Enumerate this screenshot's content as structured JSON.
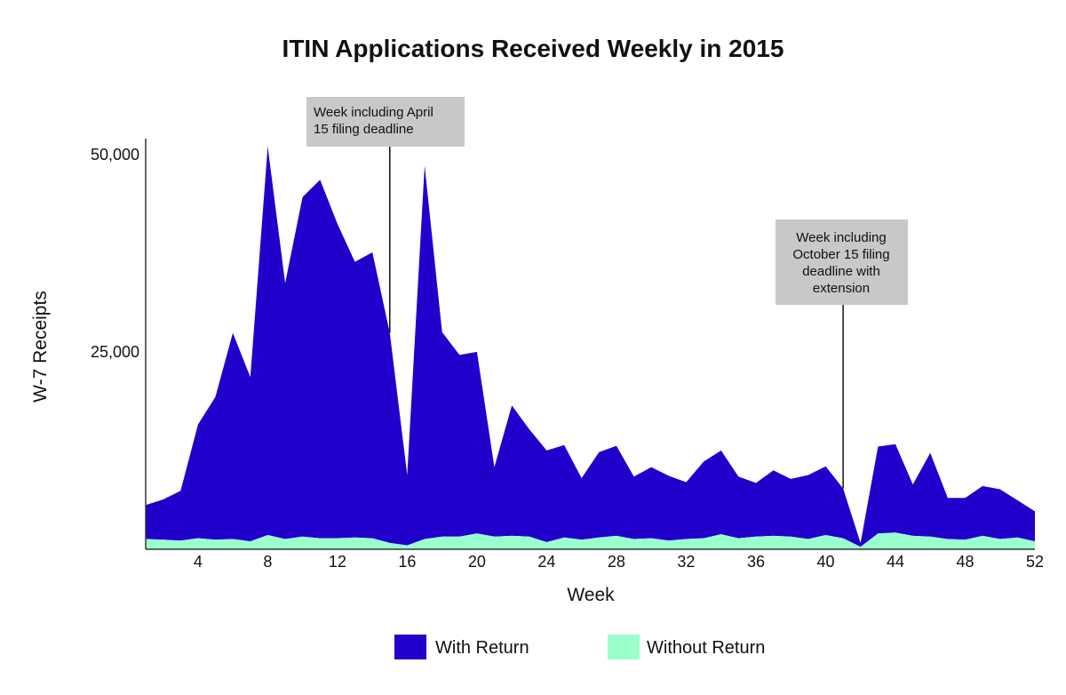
{
  "chart_data": {
    "type": "area",
    "stacked": true,
    "title": "ITIN Applications Received Weekly in 2015",
    "xlabel": "Week",
    "ylabel": "W-7 Receipts",
    "x": [
      1,
      2,
      3,
      4,
      5,
      6,
      7,
      8,
      9,
      10,
      11,
      12,
      13,
      14,
      15,
      16,
      17,
      18,
      19,
      20,
      21,
      22,
      23,
      24,
      25,
      26,
      27,
      28,
      29,
      30,
      31,
      32,
      33,
      34,
      35,
      36,
      37,
      38,
      39,
      40,
      41,
      42,
      43,
      44,
      45,
      46,
      47,
      48,
      49,
      50,
      51,
      52
    ],
    "xticks": [
      4,
      8,
      12,
      16,
      20,
      24,
      28,
      32,
      36,
      40,
      44,
      48,
      52
    ],
    "xlim": [
      1,
      52
    ],
    "yticks": [
      {
        "value": 25000,
        "label": "25,000"
      },
      {
        "value": 50000,
        "label": "50,000"
      }
    ],
    "ylim": [
      0,
      52000
    ],
    "grid": false,
    "legend_position": "bottom",
    "series": [
      {
        "name": "Without Return",
        "color": "#99ffcc",
        "values": [
          1300,
          1200,
          1100,
          1400,
          1200,
          1300,
          1000,
          1800,
          1300,
          1600,
          1400,
          1400,
          1500,
          1400,
          800,
          500,
          1300,
          1600,
          1600,
          2000,
          1600,
          1700,
          1600,
          900,
          1500,
          1200,
          1500,
          1700,
          1300,
          1400,
          1100,
          1300,
          1400,
          1900,
          1400,
          1600,
          1700,
          1600,
          1300,
          1800,
          1400,
          300,
          2000,
          2100,
          1700,
          1600,
          1300,
          1200,
          1700,
          1300,
          1500,
          1000
        ]
      },
      {
        "name": "With Return",
        "color": "#2200cc",
        "values": [
          4300,
          5100,
          6300,
          14400,
          18100,
          26100,
          20800,
          49200,
          32400,
          43000,
          45400,
          39800,
          34900,
          36200,
          26600,
          8900,
          47300,
          25900,
          23000,
          23000,
          8800,
          16500,
          13600,
          11600,
          11700,
          7800,
          10800,
          11400,
          7900,
          9000,
          8200,
          7200,
          9700,
          10600,
          7800,
          6800,
          8300,
          7300,
          8100,
          8700,
          6300,
          500,
          11000,
          11200,
          6500,
          10600,
          5200,
          5300,
          6300,
          6300,
          4700,
          3800
        ]
      }
    ],
    "annotations": [
      {
        "lines": [
          "Week including April",
          "15 filing deadline"
        ],
        "week": 15
      },
      {
        "lines": [
          "Week including",
          "October 15 filing",
          "deadline with",
          "extension"
        ],
        "week": 41
      }
    ]
  }
}
